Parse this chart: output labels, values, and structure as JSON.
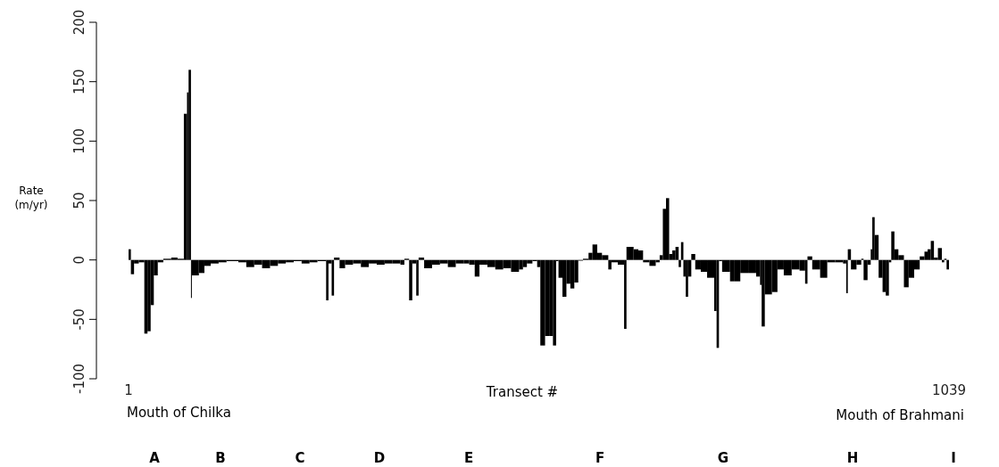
{
  "chart_data": {
    "type": "bar",
    "xlabel": "Transect #",
    "ylabel": "Rate (m/yr)",
    "color": "#000000",
    "x": [
      1,
      4,
      8,
      14,
      21,
      25,
      29,
      33,
      38,
      45,
      55,
      63,
      71,
      75,
      77,
      80,
      81,
      90,
      97,
      105,
      115,
      125,
      140,
      150,
      160,
      170,
      180,
      190,
      200,
      210,
      220,
      230,
      240,
      251,
      254,
      258,
      261,
      268,
      275,
      285,
      295,
      305,
      315,
      325,
      335,
      345,
      350,
      356,
      360,
      365,
      368,
      375,
      385,
      395,
      405,
      415,
      425,
      432,
      439,
      445,
      455,
      465,
      475,
      485,
      495,
      500,
      505,
      512,
      518,
      522,
      528,
      534,
      538,
      542,
      545,
      550,
      555,
      560,
      565,
      570,
      576,
      583,
      588,
      594,
      600,
      608,
      612,
      620,
      628,
      631,
      640,
      646,
      652,
      660,
      668,
      673,
      677,
      681,
      685,
      689,
      693,
      697,
      700,
      703,
      706,
      709,
      713,
      718,
      725,
      733,
      742,
      745,
      748,
      752,
      762,
      767,
      775,
      785,
      795,
      800,
      802,
      806,
      815,
      822,
      830,
      840,
      850,
      857,
      860,
      866,
      876,
      885,
      895,
      905,
      909,
      911,
      915,
      922,
      928,
      931,
      936,
      940,
      942,
      945,
      950,
      955,
      959,
      963,
      966,
      970,
      975,
      982,
      988,
      995,
      1002,
      1008,
      1012,
      1016,
      1020,
      1025,
      1030,
      1033,
      1036
    ],
    "values": [
      9,
      -12,
      -3,
      -2,
      -62,
      -60,
      -38,
      -13,
      -2,
      1,
      2,
      1,
      123,
      141,
      160,
      -32,
      -13,
      -11,
      -5,
      -3,
      -2,
      -1,
      -2,
      -6,
      -4,
      -7,
      -5,
      -3,
      -2,
      -1,
      -3,
      -2,
      -1,
      -34,
      -3,
      -30,
      2,
      -7,
      -4,
      -3,
      -6,
      -3,
      -4,
      -3,
      -3,
      -4,
      1,
      -34,
      -3,
      -30,
      2,
      -7,
      -4,
      -3,
      -6,
      -3,
      -3,
      -4,
      -14,
      -4,
      -6,
      -8,
      -7,
      -10,
      -8,
      -6,
      -3,
      -1,
      -6,
      -72,
      -64,
      -64,
      -72,
      -1,
      -15,
      -31,
      -20,
      -24,
      -19,
      0,
      1,
      6,
      13,
      6,
      4,
      -8,
      -2,
      -4,
      -58,
      11,
      9,
      8,
      -2,
      -5,
      -2,
      4,
      43,
      52,
      5,
      8,
      11,
      -6,
      15,
      -14,
      -31,
      -14,
      5,
      -8,
      -10,
      -15,
      -43,
      -74,
      -1,
      -10,
      -18,
      -18,
      -11,
      -11,
      -14,
      -21,
      -56,
      -29,
      -27,
      -8,
      -13,
      -8,
      -9,
      -20,
      3,
      -8,
      -15,
      -2,
      -2,
      -3,
      -28,
      9,
      -8,
      -4,
      1,
      -17,
      -4,
      9,
      36,
      21,
      -15,
      -27,
      -30,
      -2,
      24,
      9,
      4,
      -23,
      -15,
      -8,
      3,
      7,
      9,
      16,
      2,
      10,
      -2,
      1,
      -8
    ],
    "xlim": [
      1,
      1039
    ],
    "xticks": [
      1,
      1039
    ],
    "ylim": [
      -100,
      200
    ],
    "yticks": [
      -100,
      -50,
      0,
      50,
      100,
      150,
      200
    ],
    "annotations": [
      "Mouth of Chilka",
      "Mouth of Brahmani",
      "A",
      "B",
      "C",
      "D",
      "E",
      "F",
      "G",
      "H",
      "I"
    ]
  }
}
